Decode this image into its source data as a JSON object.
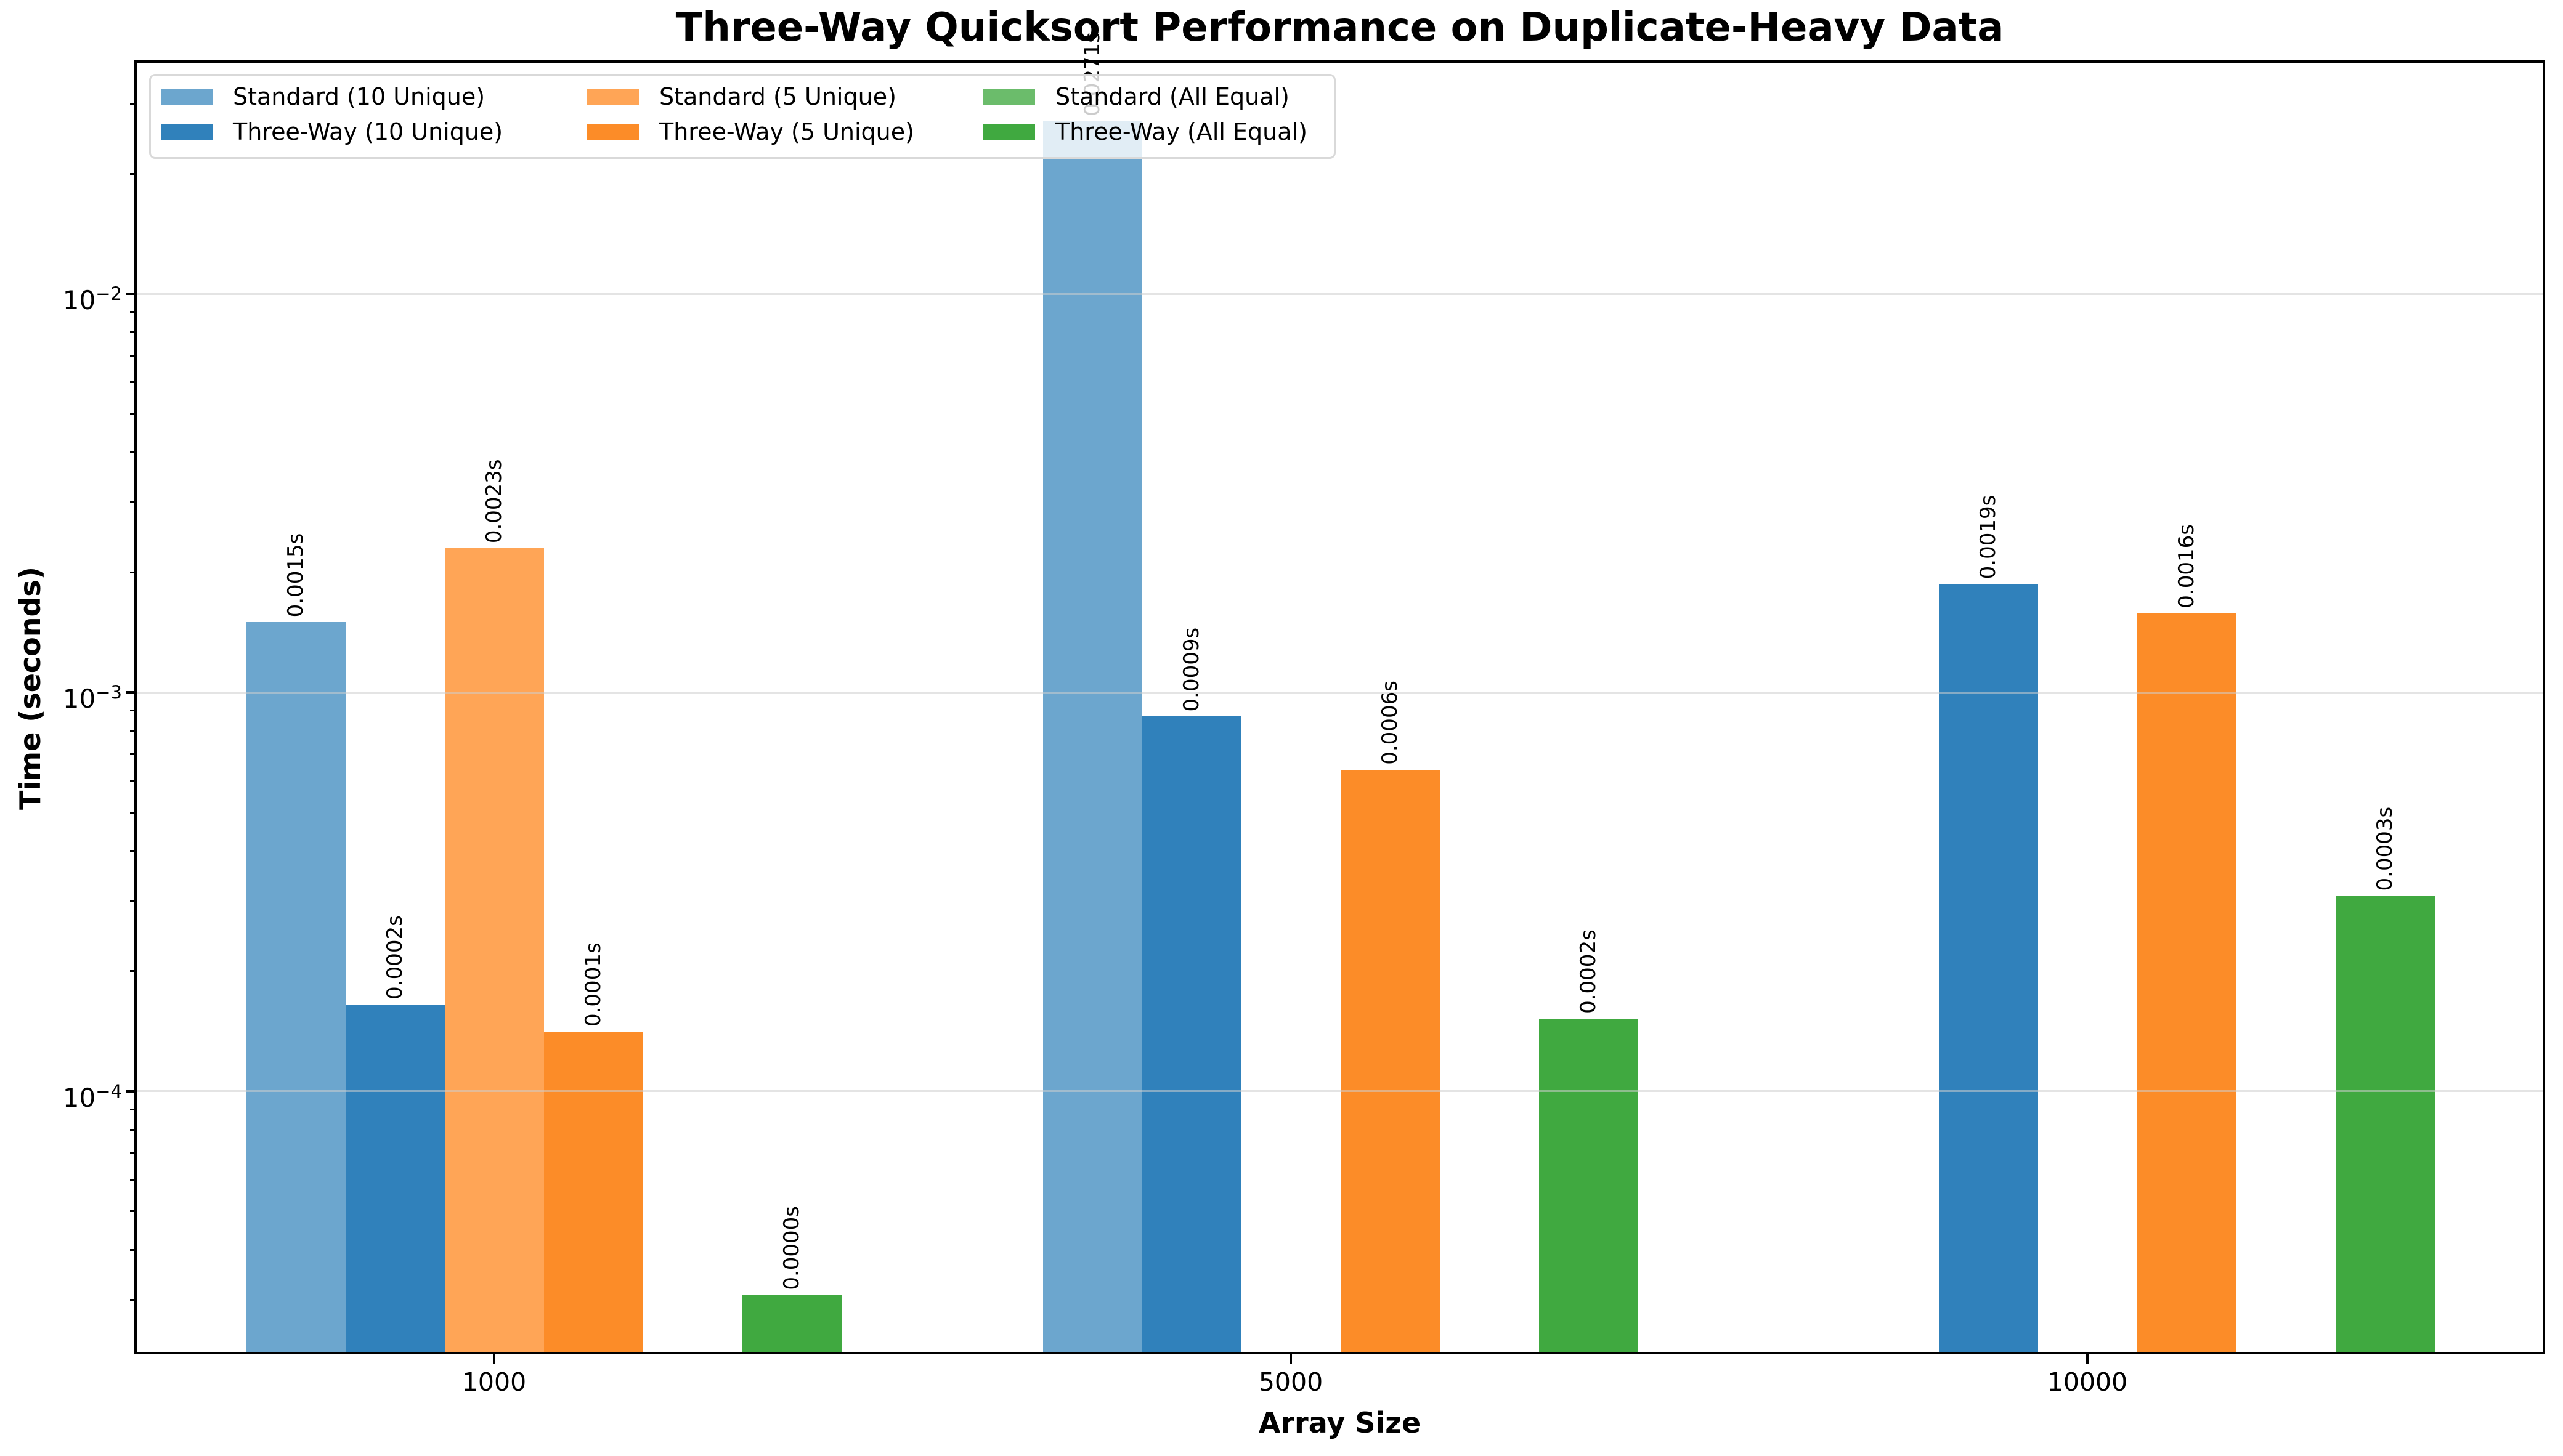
{
  "title": "Three-Way Quicksort Performance on Duplicate-Heavy Data",
  "chart_data": {
    "type": "bar",
    "title": "Three-Way Quicksort Performance on Duplicate-Heavy Data",
    "xlabel": "Array Size",
    "ylabel": "Time (seconds)",
    "yscale": "log",
    "grid": "major-horizontal-only",
    "legend_position": "upper-left",
    "legend_columns": 3,
    "categories": [
      "1000",
      "5000",
      "10000"
    ],
    "series": [
      {
        "name": "Standard (10 Unique)",
        "color": "#6CA6CE",
        "values": [
          0.0015,
          0.0271,
          null
        ],
        "labels": [
          "0.0015s",
          "0.0271s",
          null
        ]
      },
      {
        "name": "Three-Way (10 Unique)",
        "color": "#3081BB",
        "values": [
          0.000165,
          0.00087,
          0.00187
        ],
        "labels": [
          "0.0002s",
          "0.0009s",
          "0.0019s"
        ]
      },
      {
        "name": "Standard (5 Unique)",
        "color": "#FFA556",
        "values": [
          0.0023,
          null,
          null
        ],
        "labels": [
          "0.0023s",
          null,
          null
        ]
      },
      {
        "name": "Three-Way (5 Unique)",
        "color": "#FC8C28",
        "values": [
          0.000141,
          0.00064,
          0.00158
        ],
        "labels": [
          "0.0001s",
          "0.0006s",
          "0.0016s"
        ]
      },
      {
        "name": "Standard (All Equal)",
        "color": "#6BBC6B",
        "values": [
          null,
          null,
          null
        ],
        "labels": [
          null,
          null,
          null
        ]
      },
      {
        "name": "Three-Way (All Equal)",
        "color": "#40A940",
        "values": [
          3.08e-05,
          0.000152,
          0.000309
        ],
        "labels": [
          "0.0000s",
          "0.0002s",
          "0.0003s"
        ]
      }
    ],
    "y_ticks": [
      {
        "base": "10",
        "exp": "−2",
        "value": 0.01
      },
      {
        "base": "10",
        "exp": "−3",
        "value": 0.001
      },
      {
        "base": "10",
        "exp": "−4",
        "value": 0.0001
      }
    ],
    "ylim": [
      2.2e-05,
      0.0383
    ],
    "colors": {
      "grid": "#cdcdcd",
      "spine": "#000000",
      "background": "#ffffff"
    }
  }
}
